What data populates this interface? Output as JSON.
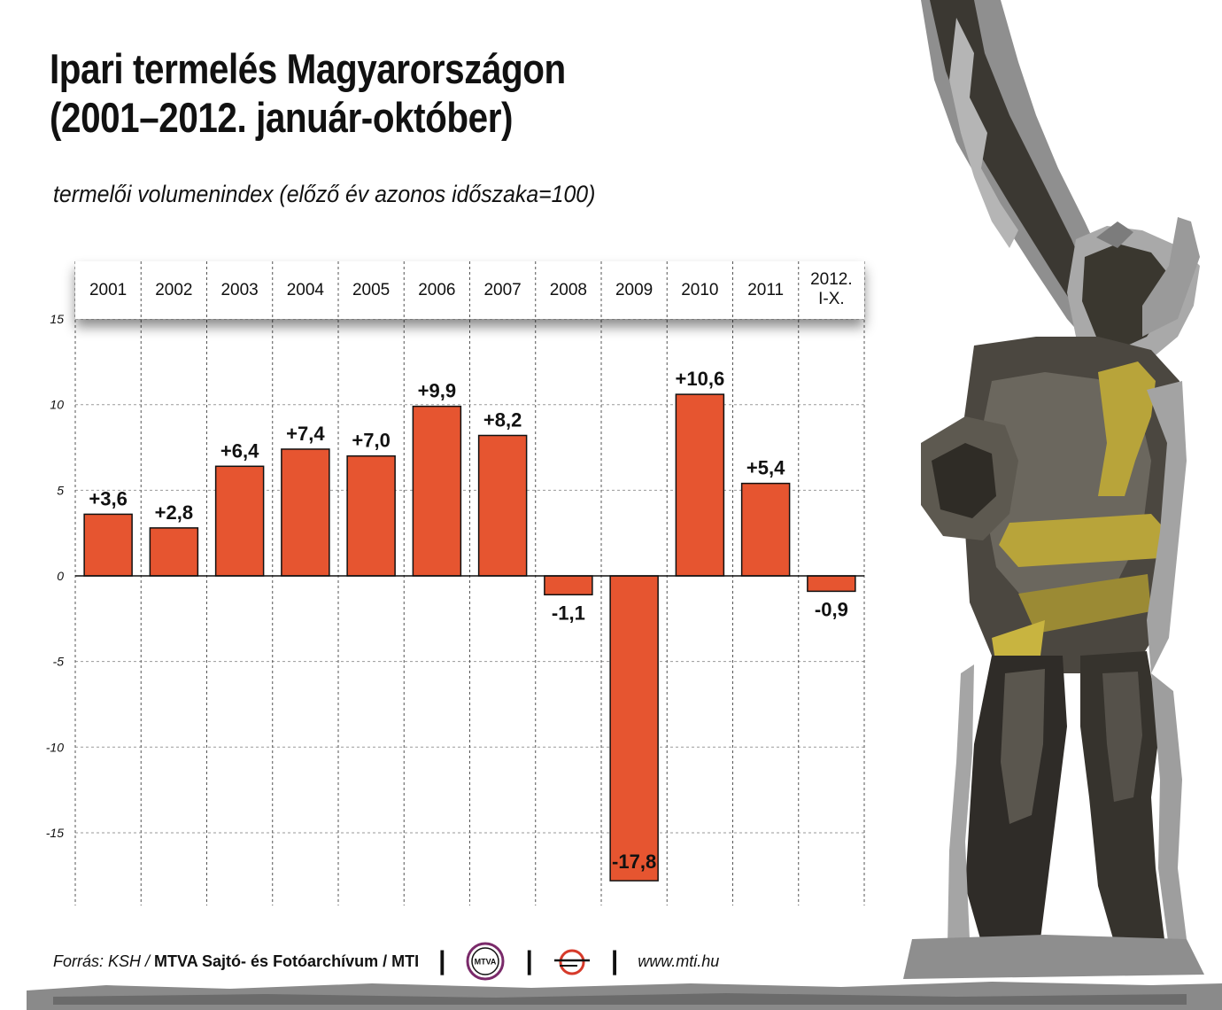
{
  "header": {
    "title_line1": "Ipari termelés Magyarországon",
    "title_line2": "(2001–2012. január-október)",
    "subtitle": "termelői volumenindex (előző év azonos időszaka=100)"
  },
  "chart_data": {
    "type": "bar",
    "categories": [
      "2001",
      "2002",
      "2003",
      "2004",
      "2005",
      "2006",
      "2007",
      "2008",
      "2009",
      "2010",
      "2011",
      "2012.\nI-X."
    ],
    "values": [
      3.6,
      2.8,
      6.4,
      7.4,
      7.0,
      9.9,
      8.2,
      -1.1,
      -17.8,
      10.6,
      5.4,
      -0.9
    ],
    "data_labels": [
      "+3,6",
      "+2,8",
      "+6,4",
      "+7,4",
      "+7,0",
      "+9,9",
      "+8,2",
      "-1,1",
      "-17,8",
      "+10,6",
      "+5,4",
      "-0,9"
    ],
    "yticks": [
      15,
      10,
      5,
      0,
      -5,
      -10,
      -15
    ],
    "ylim": [
      -19,
      15
    ],
    "grid": true,
    "bar_color": "#e65530",
    "category_position": "top"
  },
  "footer": {
    "source_prefix": "Forrás: KSH /",
    "source_bold": "MTVA Sajtó- és Fotóarchívum / MTI",
    "separator": "|",
    "logo_mtva": "MTVA",
    "logo_mti": "mti-logo-icon",
    "url": "www.mti.hu"
  },
  "decoration": {
    "statue": "statue-illustration",
    "ground": "ground-illustration"
  }
}
